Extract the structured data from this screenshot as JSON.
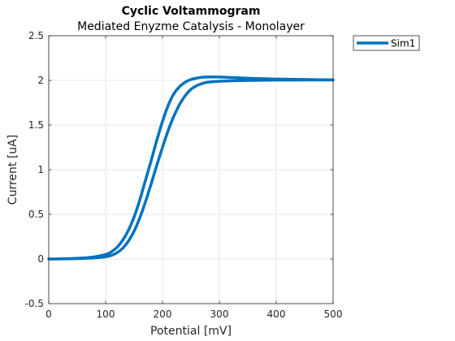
{
  "chart_data": {
    "type": "line",
    "title": "Cyclic Voltammogram",
    "subtitle": "Mediated Enyzme Catalysis - Monolayer",
    "xlabel": "Potential [mV]",
    "ylabel": "Current [uA]",
    "xlim": [
      0,
      500
    ],
    "ylim": [
      -0.5,
      2.5
    ],
    "xticks": [
      0,
      100,
      200,
      300,
      400,
      500
    ],
    "yticks": [
      -0.5,
      0,
      0.5,
      1,
      1.5,
      2,
      2.5
    ],
    "xtick_labels": [
      "0",
      "100",
      "200",
      "300",
      "400",
      "500"
    ],
    "ytick_labels": [
      "-0.5",
      "0",
      "0.5",
      "1",
      "1.5",
      "2",
      "2.5"
    ],
    "grid": true,
    "legend_position": "outside-top-right",
    "series": [
      {
        "name": "Sim1",
        "color": "#0072BD",
        "x": [
          0,
          25,
          50,
          75,
          100,
          110,
          120,
          130,
          140,
          150,
          160,
          170,
          180,
          190,
          200,
          210,
          220,
          230,
          240,
          250,
          260,
          270,
          280,
          300,
          320,
          340,
          360,
          380,
          400,
          450,
          500,
          450,
          400,
          360,
          340,
          320,
          300,
          280,
          270,
          260,
          250,
          240,
          230,
          220,
          210,
          200,
          190,
          180,
          170,
          160,
          150,
          140,
          130,
          120,
          110,
          100,
          75,
          50,
          25,
          0
        ],
        "y": [
          0,
          0.002,
          0.008,
          0.02,
          0.05,
          0.08,
          0.13,
          0.21,
          0.32,
          0.47,
          0.66,
          0.88,
          1.1,
          1.33,
          1.54,
          1.72,
          1.85,
          1.93,
          1.98,
          2.01,
          2.025,
          2.035,
          2.038,
          2.037,
          2.032,
          2.027,
          2.022,
          2.018,
          2.015,
          2.01,
          2.005,
          2.004,
          2.003,
          2.0,
          1.998,
          1.995,
          1.99,
          1.98,
          1.965,
          1.94,
          1.9,
          1.83,
          1.73,
          1.6,
          1.44,
          1.25,
          1.05,
          0.84,
          0.64,
          0.46,
          0.31,
          0.2,
          0.12,
          0.07,
          0.04,
          0.025,
          0.01,
          0.004,
          0.001,
          0
        ]
      }
    ]
  }
}
